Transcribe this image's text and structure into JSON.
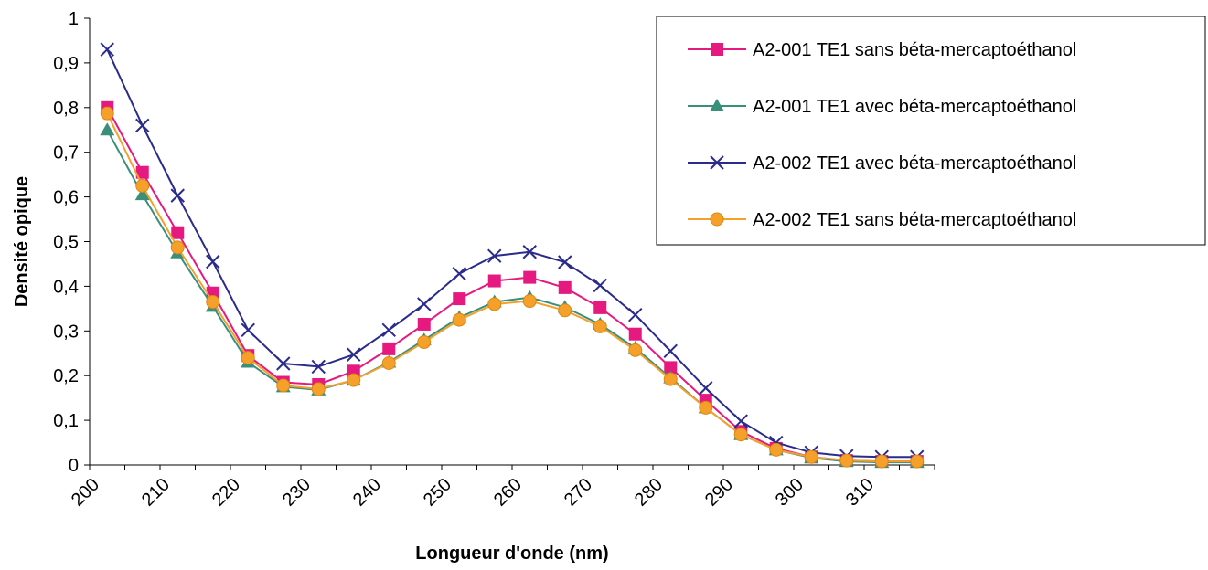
{
  "chart_data": {
    "type": "line",
    "title": "",
    "xlabel": "Longueur d'onde (nm)",
    "ylabel": "Densité opique",
    "x": [
      202.5,
      207.5,
      212.5,
      217.5,
      222.5,
      227.5,
      232.5,
      237.5,
      242.5,
      247.5,
      252.5,
      257.5,
      262.5,
      267.5,
      272.5,
      277.5,
      282.5,
      287.5,
      292.5,
      297.5,
      302.5,
      307.5,
      312.5,
      317.5
    ],
    "xlim": [
      200,
      320
    ],
    "ylim": [
      0,
      1
    ],
    "xticks": [
      "200",
      "210",
      "220",
      "230",
      "240",
      "250",
      "260",
      "270",
      "280",
      "290",
      "300",
      "310"
    ],
    "yticks": [
      "0",
      "0,1",
      "0,2",
      "0,3",
      "0,4",
      "0,5",
      "0,6",
      "0,7",
      "0,8",
      "0,9",
      "1"
    ],
    "grid": false,
    "legend_position": "top-right",
    "series": [
      {
        "name": "A2-001 TE1 sans béta-mercaptoéthanol",
        "color": "#e5197f",
        "marker": "square",
        "values": [
          0.8,
          0.655,
          0.52,
          0.385,
          0.245,
          0.185,
          0.18,
          0.21,
          0.26,
          0.315,
          0.372,
          0.412,
          0.42,
          0.397,
          0.352,
          0.293,
          0.218,
          0.145,
          0.075,
          0.037,
          0.018,
          0.01,
          0.008,
          0.008
        ]
      },
      {
        "name": "A2-001 TE1 avec béta-mercaptoéthanol",
        "color": "#3a8f7a",
        "marker": "triangle",
        "values": [
          0.75,
          0.605,
          0.475,
          0.355,
          0.23,
          0.175,
          0.168,
          0.19,
          0.23,
          0.28,
          0.33,
          0.365,
          0.375,
          0.353,
          0.315,
          0.262,
          0.195,
          0.128,
          0.068,
          0.034,
          0.016,
          0.008,
          0.006,
          0.006
        ]
      },
      {
        "name": "A2-002 TE1 avec béta-mercaptoéthanol",
        "color": "#2b2b8c",
        "marker": "x",
        "values": [
          0.93,
          0.76,
          0.603,
          0.455,
          0.302,
          0.227,
          0.22,
          0.247,
          0.302,
          0.36,
          0.428,
          0.468,
          0.477,
          0.454,
          0.402,
          0.336,
          0.255,
          0.172,
          0.098,
          0.05,
          0.028,
          0.02,
          0.018,
          0.018
        ]
      },
      {
        "name": "A2-002 TE1 sans béta-mercaptoéthanol",
        "color": "#f5a02a",
        "marker": "circle",
        "values": [
          0.787,
          0.625,
          0.487,
          0.365,
          0.24,
          0.178,
          0.17,
          0.19,
          0.228,
          0.275,
          0.325,
          0.36,
          0.367,
          0.346,
          0.31,
          0.257,
          0.192,
          0.128,
          0.068,
          0.034,
          0.018,
          0.01,
          0.008,
          0.008
        ]
      }
    ]
  }
}
